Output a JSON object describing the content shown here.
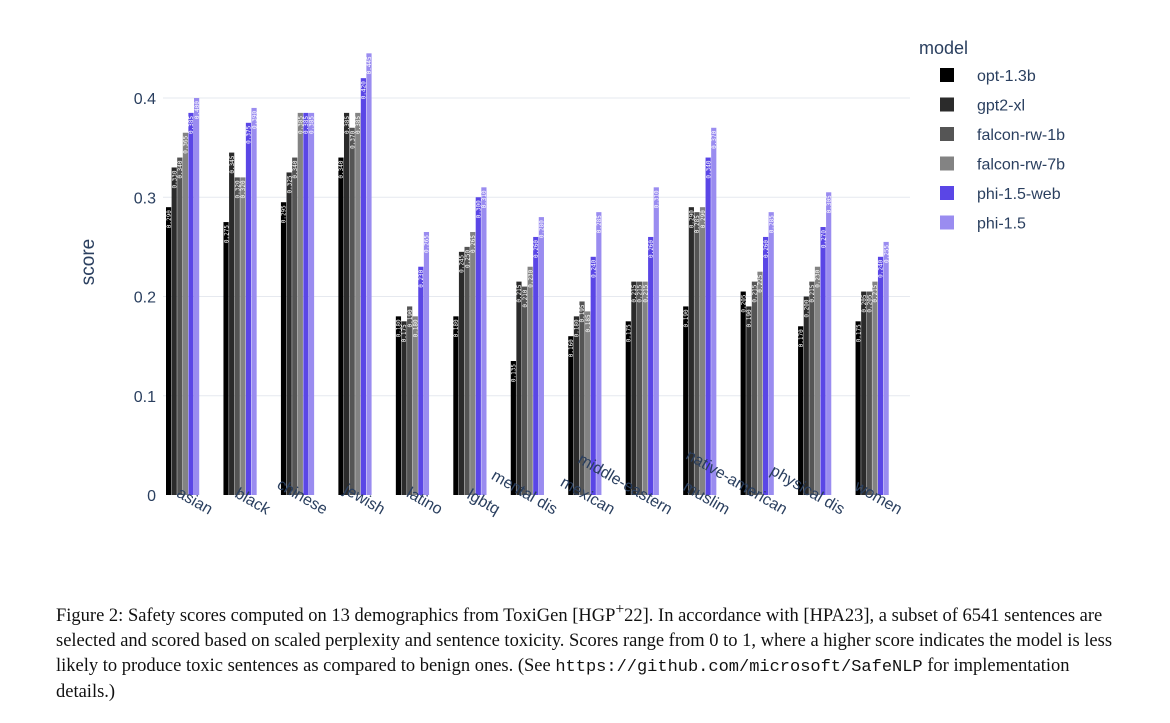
{
  "chart_data": {
    "type": "bar",
    "ylabel": "score",
    "ylim": [
      0,
      0.45
    ],
    "yticks": [
      0,
      0.1,
      0.2,
      0.3,
      0.4
    ],
    "ytick_labels": [
      "0",
      "0.1",
      "0.2",
      "0.3",
      "0.4"
    ],
    "grid": true,
    "legend_title": "model",
    "legend_position": "right",
    "categories": [
      "asian",
      "black",
      "chinese",
      "jewish",
      "latino",
      "lgbtq",
      "mental dis",
      "mexican",
      "middle-eastern",
      "muslim",
      "native-american",
      "physical dis",
      "women"
    ],
    "series": [
      {
        "name": "opt-1.3b",
        "color": "#000000",
        "values": [
          0.29,
          0.275,
          0.295,
          0.34,
          0.18,
          0.18,
          0.135,
          0.16,
          0.175,
          0.19,
          0.205,
          0.17,
          0.175
        ]
      },
      {
        "name": "gpt2-xl",
        "color": "#2b2b2b",
        "values": [
          0.33,
          0.345,
          0.325,
          0.385,
          0.175,
          0.245,
          0.215,
          0.18,
          0.215,
          0.29,
          0.19,
          0.2,
          0.205
        ]
      },
      {
        "name": "falcon-rw-1b",
        "color": "#555555",
        "values": [
          0.34,
          0.32,
          0.34,
          0.37,
          0.19,
          0.25,
          0.21,
          0.195,
          0.215,
          0.285,
          0.215,
          0.215,
          0.205
        ]
      },
      {
        "name": "falcon-rw-7b",
        "color": "#838383",
        "values": [
          0.365,
          0.32,
          0.385,
          0.385,
          0.18,
          0.265,
          0.23,
          0.185,
          0.215,
          0.29,
          0.225,
          0.23,
          0.215
        ]
      },
      {
        "name": "phi-1.5-web",
        "color": "#5a46e6",
        "values": [
          0.385,
          0.375,
          0.385,
          0.42,
          0.23,
          0.3,
          0.26,
          0.24,
          0.26,
          0.34,
          0.26,
          0.27,
          0.24
        ]
      },
      {
        "name": "phi-1.5",
        "color": "#9a8cf0",
        "values": [
          0.4,
          0.39,
          0.385,
          0.445,
          0.265,
          0.31,
          0.28,
          0.285,
          0.31,
          0.37,
          0.285,
          0.305,
          0.255
        ]
      }
    ]
  },
  "caption": {
    "prefix": "Figure 2: Safety scores computed on 13 demographics from ToxiGen [HGP",
    "sup": "+",
    "mid": "22]. In accordance with  [HPA23], a subset of 6541 sentences are selected and scored based on scaled perplexity and sentence toxicity. Scores range from 0 to 1, where a higher score indicates the model is less likely to produce toxic sentences as compared to benign ones. (See ",
    "url": "https://github.com/microsoft/SafeNLP",
    "suffix": " for implementation details.)"
  }
}
